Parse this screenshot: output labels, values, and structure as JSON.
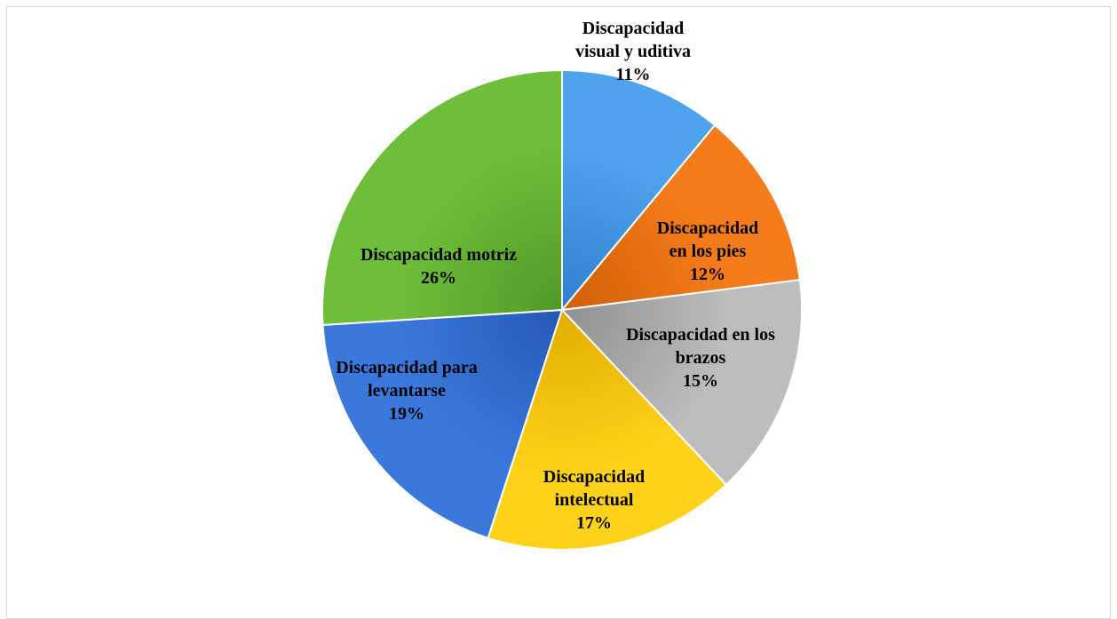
{
  "chart_data": {
    "type": "pie",
    "title": "",
    "slices": [
      {
        "label_lines": [
          "Discapacidad",
          "visual y uditiva"
        ],
        "pct_label": "11%",
        "value": 11,
        "color": "#4fa3ec",
        "color_dark": "#2f7fce"
      },
      {
        "label_lines": [
          "Discapacidad",
          "en los pies"
        ],
        "pct_label": "12%",
        "value": 12,
        "color": "#f57c1a",
        "color_dark": "#d05f06"
      },
      {
        "label_lines": [
          "Discapacidad en los",
          "brazos"
        ],
        "pct_label": "15%",
        "value": 15,
        "color": "#bdbdbd",
        "color_dark": "#8f8f8f"
      },
      {
        "label_lines": [
          "Discapacidad",
          "intelectual"
        ],
        "pct_label": "17%",
        "value": 17,
        "color": "#ffd21a",
        "color_dark": "#e0ad00"
      },
      {
        "label_lines": [
          "Discapacidad para",
          "levantarse"
        ],
        "pct_label": "19%",
        "value": 19,
        "color": "#3b78db",
        "color_dark": "#2558b5"
      },
      {
        "label_lines": [
          "Discapacidad motriz"
        ],
        "pct_label": "26%",
        "value": 26,
        "color": "#6fbe3a",
        "color_dark": "#4f9a26"
      }
    ],
    "start_angle": "12 o'clock",
    "direction": "clockwise",
    "legend": "none"
  }
}
